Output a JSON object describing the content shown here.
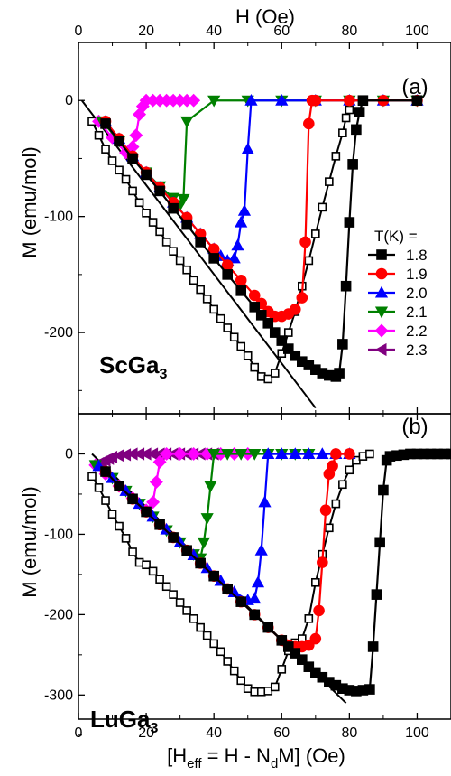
{
  "figure": {
    "top_axis_label": "H (Oe)",
    "bottom_axis_label": "[H",
    "bottom_axis_label_sub": "eff",
    "bottom_axis_label_rest": " = H - N",
    "bottom_axis_label_sub2": "d",
    "bottom_axis_label_tail": "M] (Oe)",
    "legend_title": "T(K) =",
    "legend": [
      {
        "label": "1.8",
        "color": "#000000",
        "marker": "square"
      },
      {
        "label": "1.9",
        "color": "#ff0000",
        "marker": "circle"
      },
      {
        "label": "2.0",
        "color": "#0000ff",
        "marker": "triangle-up"
      },
      {
        "label": "2.1",
        "color": "#008000",
        "marker": "triangle-down"
      },
      {
        "label": "2.2",
        "color": "#ff00ff",
        "marker": "diamond"
      },
      {
        "label": "2.3",
        "color": "#800080",
        "marker": "triangle-left"
      }
    ]
  },
  "chart_data": [
    {
      "type": "line",
      "panel_label": "(a)",
      "material": "ScGa",
      "material_sub": "3",
      "ylabel": "M (emu/mol)",
      "xlim": [
        0,
        110
      ],
      "ylim": [
        -270,
        50
      ],
      "xticks": [
        0,
        20,
        40,
        60,
        80,
        100
      ],
      "yticks": [
        0,
        -100,
        -200
      ],
      "fit_line": {
        "x": [
          1,
          70
        ],
        "y": [
          0,
          -265
        ]
      },
      "open_series": {
        "name": "1.8",
        "color": "#000000",
        "x": [
          4,
          6,
          8,
          10,
          12,
          14,
          16,
          18,
          20,
          22,
          24,
          26,
          28,
          30,
          32,
          34,
          36,
          38,
          40,
          42,
          44,
          46,
          48,
          50,
          52,
          54,
          56,
          58,
          60,
          62,
          64,
          66,
          68,
          70,
          72,
          74,
          76,
          78,
          79,
          80
        ],
        "y": [
          -18,
          -30,
          -42,
          -52,
          -60,
          -68,
          -78,
          -88,
          -97,
          -105,
          -113,
          -122,
          -130,
          -138,
          -146,
          -155,
          -163,
          -171,
          -180,
          -188,
          -196,
          -204,
          -212,
          -220,
          -230,
          -238,
          -240,
          -235,
          -218,
          -200,
          -182,
          -160,
          -138,
          -115,
          -92,
          -70,
          -48,
          -28,
          -15,
          -8
        ]
      },
      "series": [
        {
          "name": "1.8",
          "color": "#000000",
          "marker": "square",
          "x": [
            8,
            12,
            16,
            20,
            24,
            28,
            32,
            36,
            40,
            44,
            48,
            52,
            54,
            56,
            58,
            60,
            62,
            64,
            66,
            68,
            70,
            72,
            74,
            76,
            77,
            78,
            79,
            80,
            81,
            82,
            83,
            84,
            100
          ],
          "y": [
            -20,
            -35,
            -50,
            -64,
            -78,
            -93,
            -107,
            -122,
            -136,
            -150,
            -164,
            -178,
            -185,
            -192,
            -200,
            -207,
            -214,
            -220,
            -225,
            -228,
            -232,
            -235,
            -237,
            -238,
            -235,
            -210,
            -160,
            -105,
            -55,
            -25,
            -10,
            0,
            0
          ]
        },
        {
          "name": "1.9",
          "color": "#ff0000",
          "marker": "circle",
          "x": [
            8,
            12,
            16,
            20,
            24,
            28,
            32,
            36,
            40,
            44,
            48,
            52,
            54,
            56,
            58,
            60,
            62,
            64,
            66,
            67,
            68,
            69,
            70,
            80,
            90,
            100
          ],
          "y": [
            -18,
            -33,
            -48,
            -62,
            -75,
            -88,
            -101,
            -115,
            -128,
            -142,
            -155,
            -168,
            -175,
            -182,
            -186,
            -186,
            -184,
            -180,
            -170,
            -122,
            -20,
            0,
            0,
            0,
            0,
            0
          ]
        },
        {
          "name": "2.0",
          "color": "#0000ff",
          "marker": "triangle-up",
          "x": [
            8,
            12,
            16,
            20,
            24,
            28,
            32,
            36,
            40,
            42,
            44,
            46,
            47,
            48,
            49,
            50,
            51,
            60,
            70,
            80,
            90,
            100
          ],
          "y": [
            -18,
            -33,
            -48,
            -62,
            -75,
            -88,
            -101,
            -115,
            -128,
            -134,
            -138,
            -136,
            -125,
            -105,
            -95,
            -42,
            0,
            0,
            0,
            0,
            0,
            0
          ]
        },
        {
          "name": "2.1",
          "color": "#008000",
          "marker": "triangle-down",
          "x": [
            7,
            12,
            16,
            20,
            24,
            28,
            30,
            31,
            32,
            40,
            50,
            60,
            70,
            80,
            90,
            100
          ],
          "y": [
            -18,
            -35,
            -50,
            -62,
            -74,
            -84,
            -90,
            -85,
            -18,
            0,
            0,
            0,
            0,
            0,
            0,
            0
          ]
        },
        {
          "name": "2.2",
          "color": "#ff00ff",
          "marker": "diamond",
          "x": [
            6,
            10,
            14,
            16,
            17,
            18,
            19,
            20,
            22,
            24,
            26,
            28,
            30,
            32,
            34
          ],
          "y": [
            -18,
            -32,
            -45,
            -40,
            -30,
            -12,
            -5,
            0,
            0,
            0,
            0,
            0,
            0,
            0,
            0
          ]
        }
      ]
    },
    {
      "type": "line",
      "panel_label": "(b)",
      "material": "LuGa",
      "material_sub": "3",
      "ylabel": "M (emu/mol)",
      "xlim": [
        0,
        110
      ],
      "ylim": [
        -330,
        50
      ],
      "xticks": [
        0,
        20,
        40,
        60,
        80,
        100
      ],
      "yticks": [
        0,
        -100,
        -200,
        -300
      ],
      "xticklabels_shown": true,
      "fit_line": {
        "x": [
          4,
          79
        ],
        "y": [
          0,
          -310
        ]
      },
      "open_series": {
        "name": "1.8",
        "color": "#000000",
        "x": [
          4,
          6,
          8,
          10,
          12,
          14,
          16,
          18,
          20,
          22,
          24,
          26,
          28,
          30,
          32,
          34,
          36,
          38,
          40,
          42,
          44,
          46,
          48,
          50,
          52,
          54,
          56,
          58,
          60,
          62,
          64,
          66,
          68,
          70,
          72,
          74,
          76,
          78,
          80,
          82,
          84,
          86
        ],
        "y": [
          -28,
          -42,
          -58,
          -75,
          -90,
          -105,
          -122,
          -135,
          -138,
          -146,
          -156,
          -165,
          -175,
          -185,
          -195,
          -205,
          -216,
          -226,
          -236,
          -246,
          -258,
          -270,
          -282,
          -292,
          -296,
          -296,
          -295,
          -290,
          -268,
          -245,
          -235,
          -230,
          -205,
          -160,
          -125,
          -92,
          -62,
          -38,
          -20,
          -8,
          -3,
          0
        ]
      },
      "series": [
        {
          "name": "1.8",
          "color": "#000000",
          "marker": "square",
          "x": [
            8,
            12,
            16,
            20,
            24,
            28,
            32,
            36,
            40,
            44,
            48,
            52,
            56,
            60,
            62,
            64,
            66,
            68,
            70,
            72,
            74,
            76,
            78,
            80,
            82,
            84,
            86,
            87,
            88,
            89,
            90,
            91,
            92,
            94,
            96,
            98,
            100,
            102,
            104,
            106,
            108,
            110
          ],
          "y": [
            -22,
            -40,
            -56,
            -72,
            -88,
            -104,
            -120,
            -136,
            -152,
            -168,
            -184,
            -200,
            -216,
            -232,
            -240,
            -248,
            -256,
            -265,
            -272,
            -278,
            -284,
            -288,
            -292,
            -294,
            -295,
            -294,
            -293,
            -240,
            -175,
            -110,
            -45,
            -8,
            -3,
            -2,
            -1,
            0,
            0,
            0,
            0,
            0,
            0,
            0
          ]
        },
        {
          "name": "1.9",
          "color": "#ff0000",
          "marker": "circle",
          "x": [
            8,
            12,
            16,
            20,
            24,
            28,
            32,
            36,
            40,
            44,
            48,
            52,
            56,
            60,
            62,
            64,
            66,
            68,
            70,
            71,
            72,
            73,
            74,
            75,
            76,
            80
          ],
          "y": [
            -22,
            -40,
            -56,
            -72,
            -88,
            -104,
            -120,
            -136,
            -152,
            -168,
            -184,
            -200,
            -216,
            -232,
            -238,
            -240,
            -240,
            -238,
            -230,
            -195,
            -135,
            -70,
            -25,
            -15,
            0,
            0
          ]
        },
        {
          "name": "2.0",
          "color": "#0000ff",
          "marker": "triangle-up",
          "x": [
            6,
            10,
            14,
            18,
            22,
            26,
            30,
            34,
            38,
            42,
            46,
            50,
            52,
            53,
            54,
            55,
            56,
            60,
            64,
            68,
            72,
            76,
            80
          ],
          "y": [
            -15,
            -30,
            -46,
            -62,
            -78,
            -94,
            -110,
            -126,
            -142,
            -158,
            -172,
            -182,
            -180,
            -160,
            -120,
            -60,
            0,
            0,
            0,
            0,
            0,
            0,
            0
          ]
        },
        {
          "name": "2.1",
          "color": "#008000",
          "marker": "triangle-down",
          "x": [
            5,
            10,
            14,
            18,
            22,
            26,
            30,
            34,
            36,
            37,
            38,
            39,
            40,
            44,
            48,
            52,
            56,
            60,
            64,
            68
          ],
          "y": [
            -14,
            -30,
            -46,
            -62,
            -78,
            -95,
            -110,
            -125,
            -130,
            -110,
            -80,
            -40,
            0,
            0,
            0,
            0,
            0,
            0,
            0,
            0
          ]
        },
        {
          "name": "2.2",
          "color": "#ff00ff",
          "marker": "diamond",
          "x": [
            5,
            8,
            12,
            16,
            20,
            22,
            23,
            24,
            26,
            30,
            34,
            38,
            42,
            46,
            50
          ],
          "y": [
            -14,
            -25,
            -40,
            -55,
            -70,
            -60,
            -35,
            -10,
            0,
            0,
            0,
            0,
            0,
            0,
            0
          ]
        },
        {
          "name": "2.3",
          "color": "#800080",
          "marker": "triangle-left",
          "x": [
            5,
            6,
            7,
            8,
            9,
            10,
            12,
            14,
            16,
            18,
            20,
            22,
            24,
            26,
            28,
            30,
            32,
            34,
            36,
            38,
            40
          ],
          "y": [
            -14,
            -12,
            -10,
            -8,
            -6,
            -4,
            -2,
            -1,
            0,
            0,
            0,
            0,
            0,
            0,
            0,
            0,
            0,
            0,
            0,
            0,
            0
          ]
        }
      ]
    }
  ]
}
